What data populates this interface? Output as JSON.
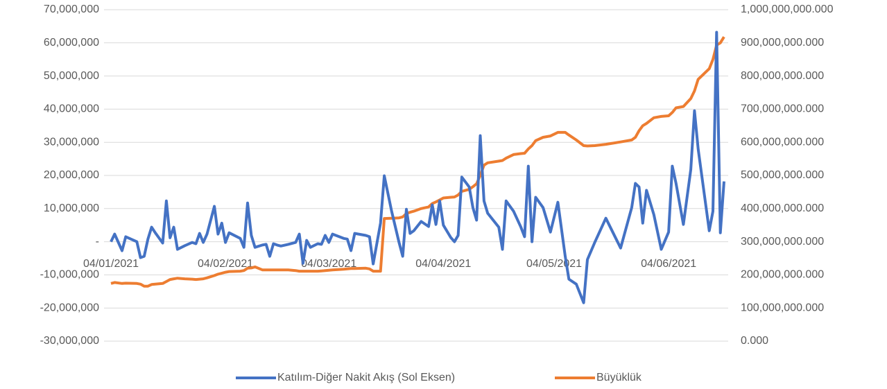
{
  "chart_data": {
    "type": "line",
    "x": [
      "2021-01-04",
      "2021-01-05",
      "2021-01-07",
      "2021-01-08",
      "2021-01-11",
      "2021-01-12",
      "2021-01-13",
      "2021-01-14",
      "2021-01-15",
      "2021-01-16",
      "2021-01-18",
      "2021-01-19",
      "2021-01-20",
      "2021-01-21",
      "2021-01-22",
      "2021-01-24",
      "2021-01-26",
      "2021-01-27",
      "2021-01-28",
      "2021-01-29",
      "2021-01-30",
      "2021-02-01",
      "2021-02-02",
      "2021-02-03",
      "2021-02-04",
      "2021-02-05",
      "2021-02-08",
      "2021-02-09",
      "2021-02-10",
      "2021-02-11",
      "2021-02-12",
      "2021-02-14",
      "2021-02-15",
      "2021-02-16",
      "2021-02-17",
      "2021-02-18",
      "2021-02-19",
      "2021-02-21",
      "2021-02-23",
      "2021-02-24",
      "2021-02-25",
      "2021-02-26",
      "2021-02-27",
      "2021-03-01",
      "2021-03-02",
      "2021-03-03",
      "2021-03-04",
      "2021-03-05",
      "2021-03-08",
      "2021-03-09",
      "2021-03-10",
      "2021-03-11",
      "2021-03-14",
      "2021-03-15",
      "2021-03-16",
      "2021-03-18",
      "2021-03-19",
      "2021-03-21",
      "2021-03-23",
      "2021-03-24",
      "2021-03-25",
      "2021-03-26",
      "2021-03-27",
      "2021-03-29",
      "2021-03-31",
      "2021-04-01",
      "2021-04-02",
      "2021-04-03",
      "2021-04-04",
      "2021-04-06",
      "2021-04-07",
      "2021-04-08",
      "2021-04-09",
      "2021-04-11",
      "2021-04-12",
      "2021-04-13",
      "2021-04-14",
      "2021-04-15",
      "2021-04-16",
      "2021-04-19",
      "2021-04-20",
      "2021-04-21",
      "2021-04-23",
      "2021-04-25",
      "2021-04-26",
      "2021-04-27",
      "2021-04-28",
      "2021-04-29",
      "2021-05-01",
      "2021-05-03",
      "2021-05-05",
      "2021-05-07",
      "2021-05-08",
      "2021-05-10",
      "2021-05-12",
      "2021-05-13",
      "2021-05-15",
      "2021-05-18",
      "2021-05-22",
      "2021-05-25",
      "2021-05-26",
      "2021-05-27",
      "2021-05-28",
      "2021-05-29",
      "2021-05-31",
      "2021-06-02",
      "2021-06-04",
      "2021-06-05",
      "2021-06-06",
      "2021-06-08",
      "2021-06-10",
      "2021-06-11",
      "2021-06-12",
      "2021-06-15",
      "2021-06-16",
      "2021-06-17",
      "2021-06-18",
      "2021-06-19"
    ],
    "series": [
      {
        "name": "Katılım-Diğer Nakit Akış (Sol Eksen)",
        "color": "#4472c4",
        "axis": "y",
        "values": [
          0,
          2300000,
          -2700000,
          1500000,
          0,
          -4800000,
          -4400000,
          800000,
          4400000,
          2700000,
          -400000,
          12300000,
          1200000,
          4400000,
          -2300000,
          -1200000,
          -200000,
          -600000,
          2500000,
          -200000,
          2300000,
          10700000,
          2300000,
          5600000,
          -200000,
          2700000,
          1000000,
          -1700000,
          11700000,
          1900000,
          -1700000,
          -1000000,
          -800000,
          -4400000,
          -600000,
          -1000000,
          -1300000,
          -800000,
          -200000,
          2300000,
          -6500000,
          400000,
          -1700000,
          -600000,
          -800000,
          1900000,
          -200000,
          2300000,
          1000000,
          800000,
          -2700000,
          2500000,
          1900000,
          1500000,
          -6700000,
          5600000,
          19900000,
          9200000,
          -200000,
          -4400000,
          9800000,
          2500000,
          3300000,
          6100000,
          4600000,
          11100000,
          5200000,
          12300000,
          5000000,
          1300000,
          0,
          1900000,
          19500000,
          16500000,
          10300000,
          6500000,
          32000000,
          12300000,
          8600000,
          4400000,
          -2300000,
          12300000,
          9200000,
          4400000,
          1500000,
          22800000,
          0,
          13400000,
          10300000,
          2900000,
          11900000,
          -4400000,
          -11300000,
          -12800000,
          -18400000,
          -5400000,
          -200000,
          7100000,
          -1900000,
          10300000,
          17600000,
          16500000,
          5600000,
          15500000,
          8200000,
          -2300000,
          2900000,
          22800000,
          17600000,
          5200000,
          21800000,
          39500000,
          28000000,
          3300000,
          9200000,
          63200000,
          2700000,
          18200000
        ]
      },
      {
        "name": "Büyüklük",
        "color": "#ed7d31",
        "axis": "y2",
        "values": [
          174000000,
          177000000,
          174000000,
          175000000,
          174000000,
          172000000,
          166000000,
          166000000,
          171000000,
          172000000,
          174000000,
          180000000,
          186000000,
          188000000,
          190000000,
          188000000,
          187000000,
          186000000,
          187000000,
          188000000,
          191000000,
          198000000,
          202000000,
          205000000,
          208000000,
          210000000,
          211000000,
          213000000,
          220000000,
          221000000,
          224000000,
          215000000,
          215000000,
          215000000,
          215000000,
          215000000,
          215000000,
          215000000,
          213000000,
          211000000,
          211000000,
          211000000,
          211000000,
          211000000,
          212000000,
          213000000,
          214000000,
          215000000,
          217000000,
          218000000,
          219000000,
          219000000,
          220000000,
          218000000,
          211000000,
          211000000,
          370000000,
          371000000,
          372000000,
          375000000,
          385000000,
          389000000,
          392000000,
          400000000,
          405000000,
          415000000,
          420000000,
          426000000,
          432000000,
          434000000,
          435000000,
          441000000,
          452000000,
          458000000,
          466000000,
          475000000,
          500000000,
          531000000,
          538000000,
          543000000,
          545000000,
          552000000,
          563000000,
          566000000,
          567000000,
          580000000,
          590000000,
          605000000,
          615000000,
          619000000,
          630000000,
          630000000,
          622000000,
          607000000,
          590000000,
          589000000,
          590000000,
          594000000,
          601000000,
          607000000,
          615000000,
          635000000,
          650000000,
          657000000,
          674000000,
          678000000,
          680000000,
          690000000,
          704000000,
          708000000,
          732000000,
          755000000,
          790000000,
          822000000,
          850000000,
          893000000,
          900000000,
          918000000
        ]
      }
    ],
    "xlim": [
      "2021-01-04",
      "2021-06-19"
    ],
    "xticks": [
      {
        "value": "2021-01-04",
        "label": "04/01/2021"
      },
      {
        "value": "2021-02-04",
        "label": "04/02/2021"
      },
      {
        "value": "2021-03-04",
        "label": "04/03/2021"
      },
      {
        "value": "2021-04-04",
        "label": "04/04/2021"
      },
      {
        "value": "2021-05-04",
        "label": "04/05/2021"
      },
      {
        "value": "2021-06-04",
        "label": "04/06/2021"
      }
    ],
    "ylim": [
      -30000000,
      70000000
    ],
    "yticks": [
      {
        "value": -30000000,
        "label": "-30,000,000"
      },
      {
        "value": -20000000,
        "label": "-20,000,000"
      },
      {
        "value": -10000000,
        "label": "-10,000,000"
      },
      {
        "value": 0,
        "label": "-"
      },
      {
        "value": 10000000,
        "label": "10,000,000"
      },
      {
        "value": 20000000,
        "label": "20,000,000"
      },
      {
        "value": 30000000,
        "label": "30,000,000"
      },
      {
        "value": 40000000,
        "label": "40,000,000"
      },
      {
        "value": 50000000,
        "label": "50,000,000"
      },
      {
        "value": 60000000,
        "label": "60,000,000"
      },
      {
        "value": 70000000,
        "label": "70,000,000"
      }
    ],
    "y2lim": [
      0,
      1000000000
    ],
    "y2ticks": [
      {
        "value": 0,
        "label": "0.000"
      },
      {
        "value": 100000000,
        "label": "100,000,000.000"
      },
      {
        "value": 200000000,
        "label": "200,000,000.000"
      },
      {
        "value": 300000000,
        "label": "300,000,000.000"
      },
      {
        "value": 400000000,
        "label": "400,000,000.000"
      },
      {
        "value": 500000000,
        "label": "500,000,000.000"
      },
      {
        "value": 600000000,
        "label": "600,000,000.000"
      },
      {
        "value": 700000000,
        "label": "700,000,000.000"
      },
      {
        "value": 800000000,
        "label": "800,000,000.000"
      },
      {
        "value": 900000000,
        "label": "900,000,000.000"
      },
      {
        "value": 1000000000,
        "label": "1,000,000,000.000"
      }
    ],
    "grid": true,
    "legend": "bottom"
  }
}
